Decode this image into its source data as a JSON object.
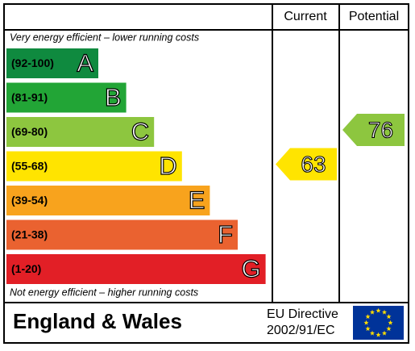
{
  "header": {
    "current": "Current",
    "potential": "Potential"
  },
  "top_note": "Very energy efficient – lower running costs",
  "bottom_note": "Not energy efficient – higher running costs",
  "bands": [
    {
      "range": "(92-100)",
      "letter": "A",
      "color": "#0f8a3f"
    },
    {
      "range": "(81-91)",
      "letter": "B",
      "color": "#22a536"
    },
    {
      "range": "(69-80)",
      "letter": "C",
      "color": "#8dc63f"
    },
    {
      "range": "(55-68)",
      "letter": "D",
      "color": "#ffe400"
    },
    {
      "range": "(39-54)",
      "letter": "E",
      "color": "#f8a31d"
    },
    {
      "range": "(21-38)",
      "letter": "F",
      "color": "#ea6230"
    },
    {
      "range": "(1-20)",
      "letter": "G",
      "color": "#e21f26"
    }
  ],
  "current": {
    "value": 63,
    "label": "63"
  },
  "potential": {
    "value": 76,
    "label": "76"
  },
  "footer": {
    "region": "England & Wales",
    "directive_line1": "EU Directive",
    "directive_line2": "2002/91/EC"
  }
}
